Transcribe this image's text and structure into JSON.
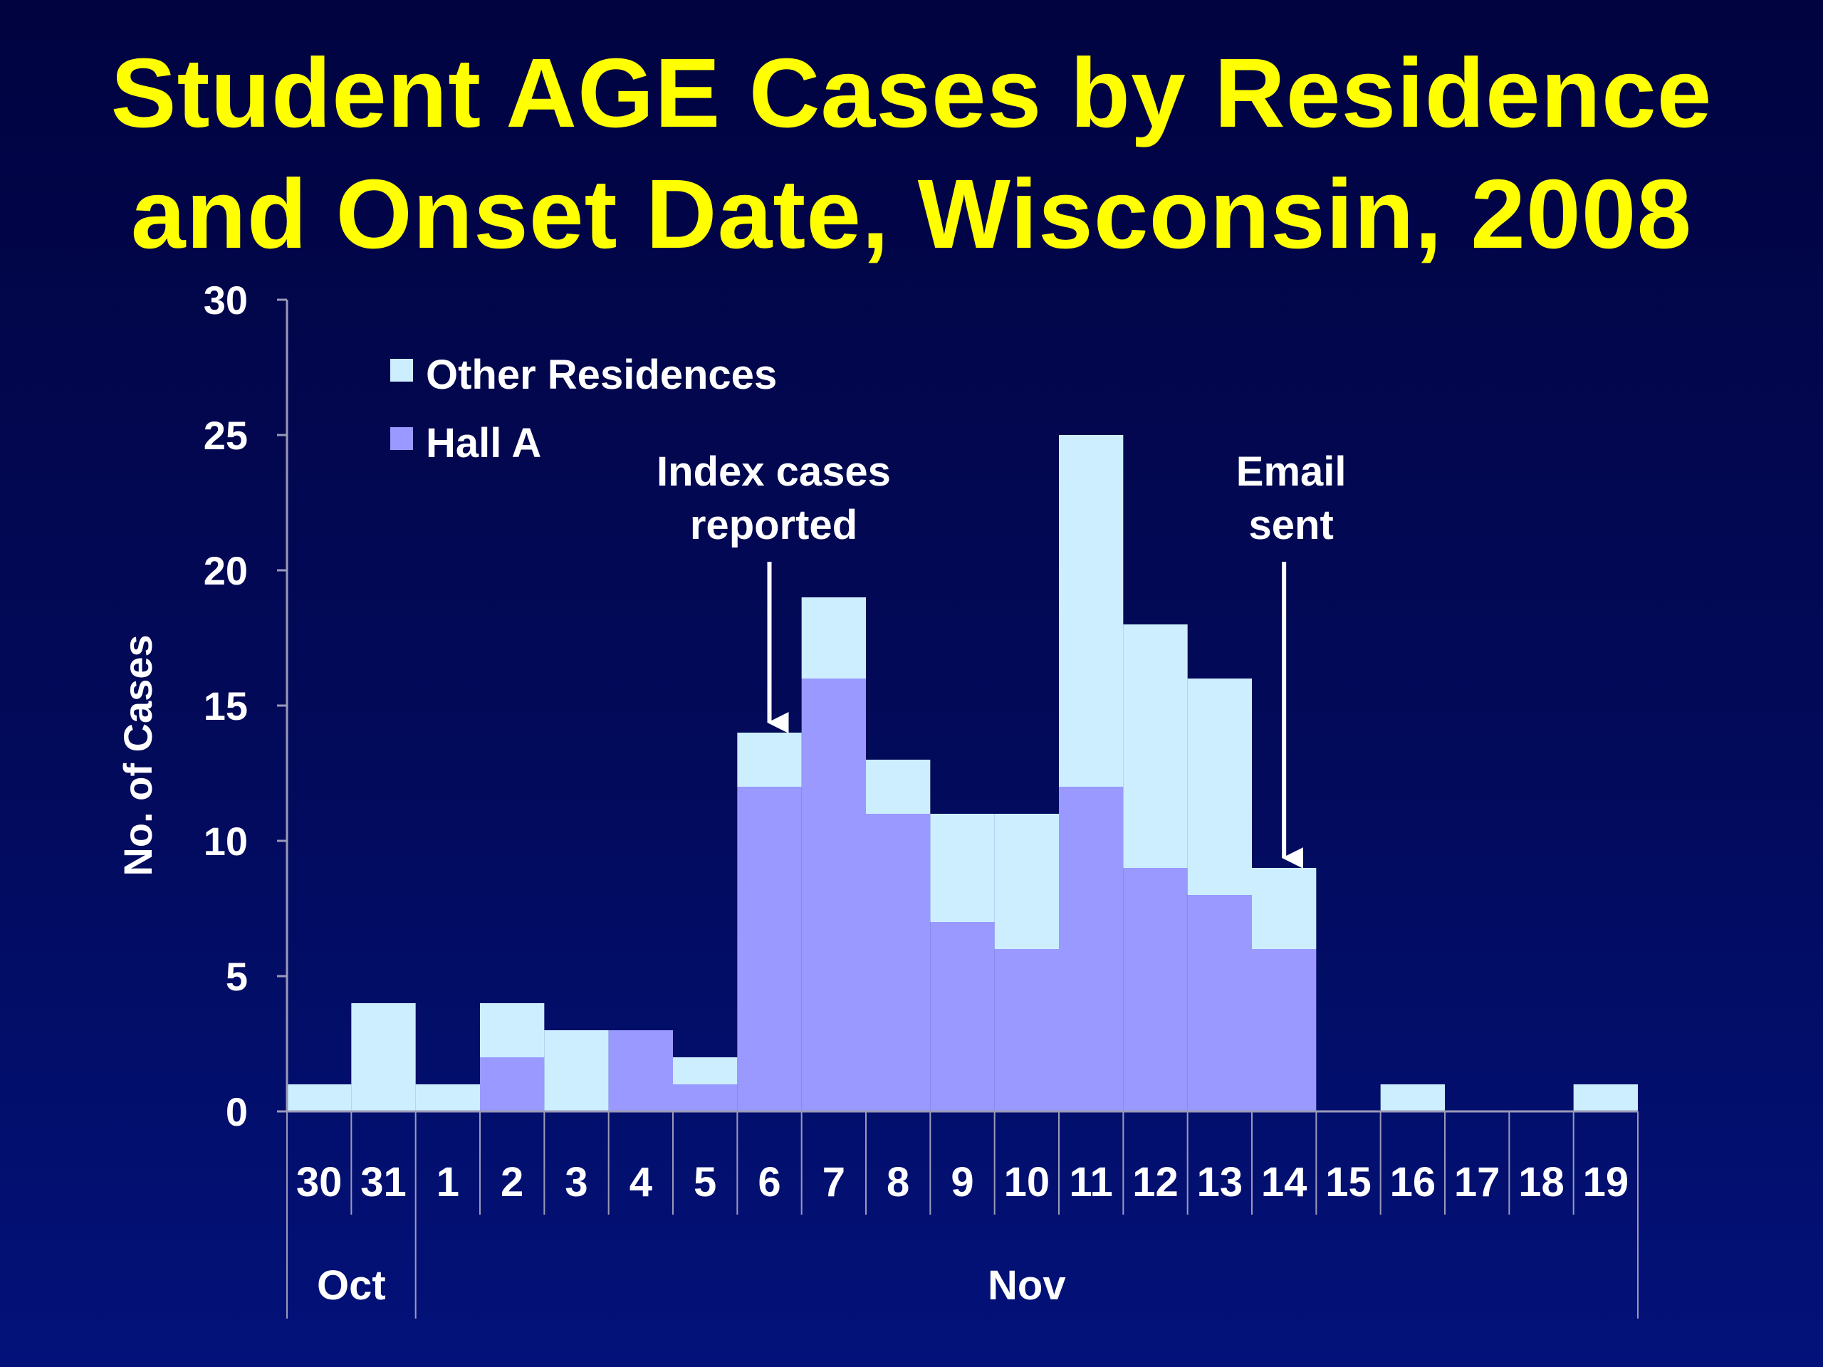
{
  "chart_data": {
    "type": "bar",
    "stacked": true,
    "title_lines": [
      "Student AGE Cases by Residence",
      "and Onset Date, Wisconsin, 2008"
    ],
    "ylabel": "No. of Cases",
    "ylim": [
      0,
      30
    ],
    "yticks": [
      0,
      5,
      10,
      15,
      20,
      25,
      30
    ],
    "categories": [
      "30",
      "31",
      "1",
      "2",
      "3",
      "4",
      "5",
      "6",
      "7",
      "8",
      "9",
      "10",
      "11",
      "12",
      "13",
      "14",
      "15",
      "16",
      "17",
      "18",
      "19"
    ],
    "months": [
      {
        "label": "Oct",
        "count": 2
      },
      {
        "label": "Nov",
        "count": 19
      }
    ],
    "series": [
      {
        "name": "Hall A",
        "color": "#9999ff",
        "values": [
          0,
          0,
          0,
          2,
          0,
          3,
          1,
          12,
          16,
          11,
          7,
          6,
          12,
          9,
          8,
          6,
          0,
          0,
          0,
          0,
          0
        ]
      },
      {
        "name": "Other Residences",
        "color": "#cceeff",
        "values": [
          1,
          4,
          1,
          2,
          3,
          0,
          1,
          2,
          3,
          2,
          4,
          5,
          13,
          9,
          8,
          3,
          0,
          1,
          0,
          0,
          1
        ]
      }
    ],
    "legend": {
      "position": "top-left",
      "items": [
        {
          "label": "Other Residences",
          "color": "#cceeff"
        },
        {
          "label": "Hall A",
          "color": "#9999ff"
        }
      ]
    },
    "annotations": [
      {
        "lines": [
          "Index cases",
          "reported"
        ],
        "category": "6",
        "arrow_to": 14
      },
      {
        "lines": [
          "Email",
          "sent"
        ],
        "category": "14",
        "arrow_to": 9
      }
    ]
  },
  "colors": {
    "background": "#010345",
    "title": "#ffff00",
    "text": "#ffffff",
    "axis": "#9a9ab8"
  }
}
